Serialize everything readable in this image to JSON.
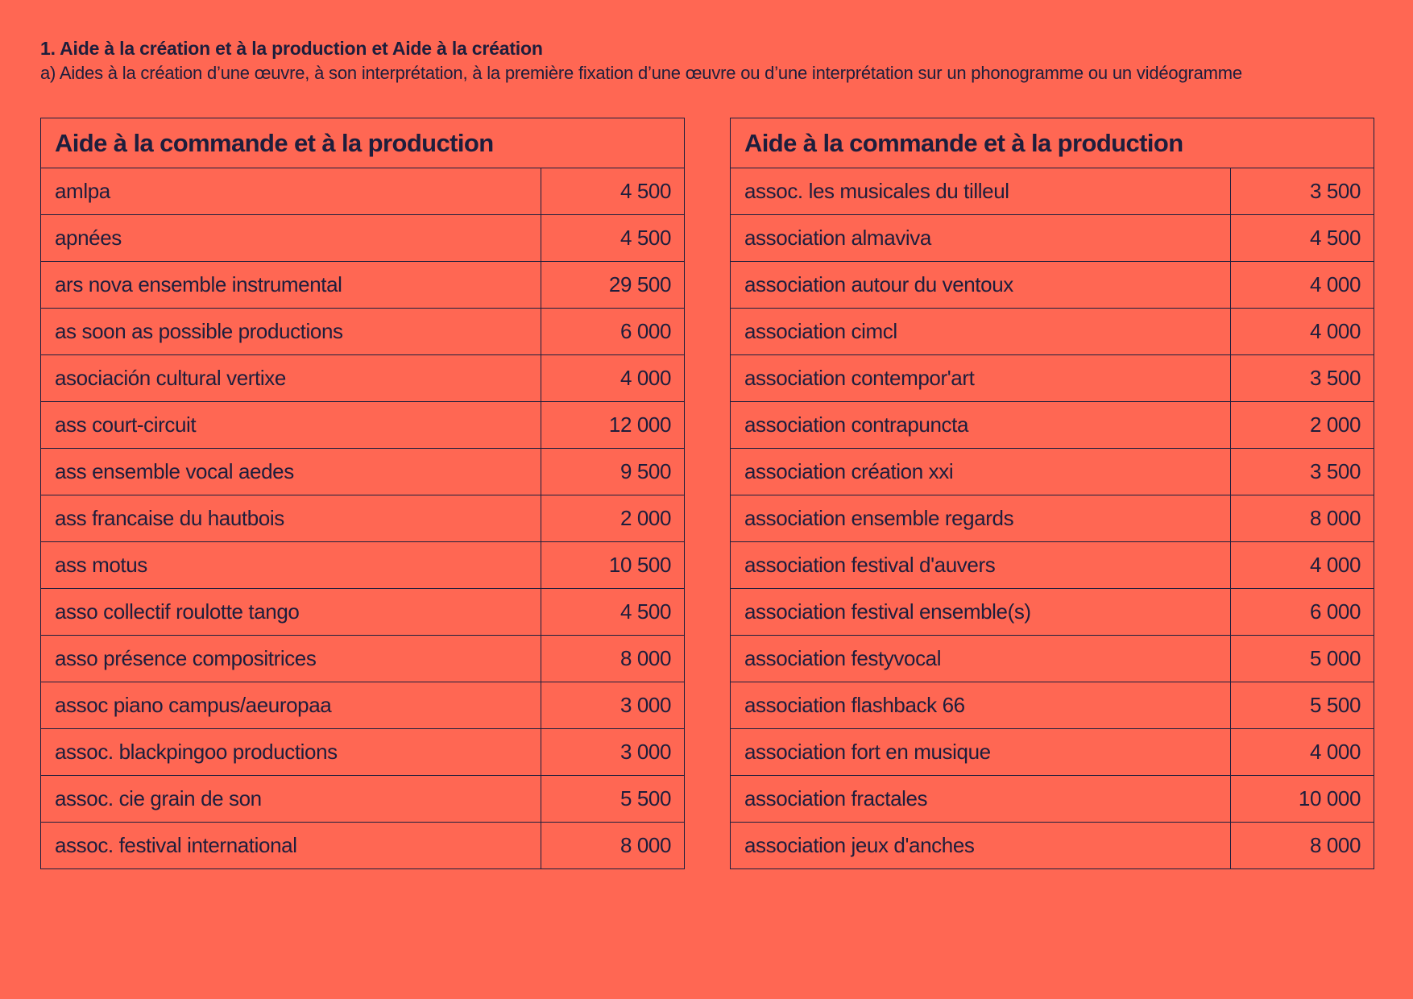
{
  "heading": {
    "title": "1. Aide à la création et à la production et Aide à la création",
    "subtitle": "a) Aides à la création d’une œuvre, à son interprétation, à la première fixation d’une œuvre ou d’une interprétation sur un phonogramme ou un vidéogramme"
  },
  "tables": [
    {
      "header": "Aide à la commande et à la production",
      "rows": [
        {
          "name": "amlpa",
          "amount": "4 500"
        },
        {
          "name": "apnées",
          "amount": "4 500"
        },
        {
          "name": "ars nova ensemble instrumental",
          "amount": "29 500"
        },
        {
          "name": "as soon as possible productions",
          "amount": "6 000"
        },
        {
          "name": "asociación cultural vertixe",
          "amount": "4 000"
        },
        {
          "name": "ass court-circuit",
          "amount": "12 000"
        },
        {
          "name": "ass ensemble vocal aedes",
          "amount": "9 500"
        },
        {
          "name": "ass francaise du hautbois",
          "amount": "2 000"
        },
        {
          "name": "ass motus",
          "amount": "10 500"
        },
        {
          "name": "asso collectif roulotte tango",
          "amount": "4 500"
        },
        {
          "name": "asso présence compositrices",
          "amount": "8 000"
        },
        {
          "name": "assoc piano campus/aeuropaa",
          "amount": "3 000"
        },
        {
          "name": "assoc. blackpingoo productions",
          "amount": "3 000"
        },
        {
          "name": "assoc. cie grain de son",
          "amount": "5 500"
        },
        {
          "name": "assoc. festival international",
          "amount": "8 000"
        }
      ]
    },
    {
      "header": "Aide à la commande et à la production",
      "rows": [
        {
          "name": "assoc. les musicales du tilleul",
          "amount": "3 500"
        },
        {
          "name": "association almaviva",
          "amount": "4 500"
        },
        {
          "name": "association autour du ventoux",
          "amount": "4 000"
        },
        {
          "name": "association cimcl",
          "amount": "4 000"
        },
        {
          "name": "association contempor'art",
          "amount": "3 500"
        },
        {
          "name": "association contrapuncta",
          "amount": "2 000"
        },
        {
          "name": "association création xxi",
          "amount": "3 500"
        },
        {
          "name": "association ensemble regards",
          "amount": "8 000"
        },
        {
          "name": "association festival d'auvers",
          "amount": "4 000"
        },
        {
          "name": "association festival ensemble(s)",
          "amount": "6 000"
        },
        {
          "name": "association festyvocal",
          "amount": "5 000"
        },
        {
          "name": "association flashback 66",
          "amount": "5 500"
        },
        {
          "name": "association fort en musique",
          "amount": "4 000"
        },
        {
          "name": "association fractales",
          "amount": "10 000"
        },
        {
          "name": "association jeux d'anches",
          "amount": "8 000"
        }
      ]
    }
  ]
}
